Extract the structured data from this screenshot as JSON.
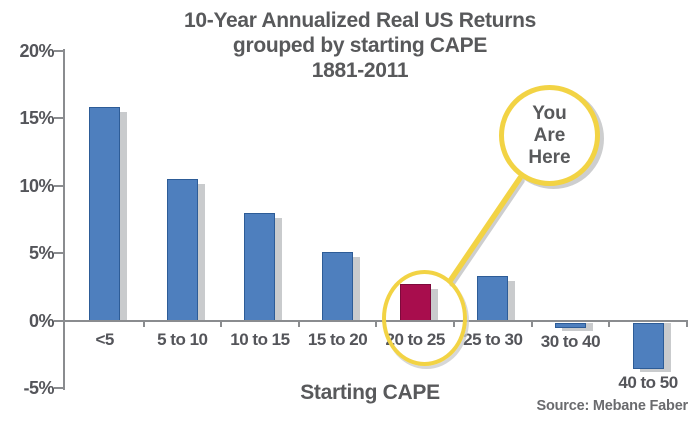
{
  "title": {
    "lines": [
      "10-Year Annualized Real US Returns",
      "grouped by starting CAPE",
      "1881-2011"
    ]
  },
  "chart_data": {
    "type": "bar",
    "categories": [
      "<5",
      "5 to 10",
      "10 to 15",
      "15 to 20",
      "20 to 25",
      "25 to 30",
      "30 to 40",
      "40 to 50"
    ],
    "values": [
      15.8,
      10.5,
      8.0,
      5.1,
      2.7,
      3.3,
      -0.3,
      -3.4
    ],
    "highlight_index": 4,
    "title": "10-Year Annualized Real US Returns grouped by starting CAPE 1881-2011",
    "xlabel": "Starting CAPE",
    "ylabel": "",
    "ylim": [
      -5,
      20
    ],
    "y_ticks": [
      20,
      15,
      10,
      5,
      0,
      -5
    ],
    "y_tick_labels": [
      "20%",
      "15%",
      "10%",
      "5%",
      "0%",
      "-5%"
    ],
    "grid": false,
    "legend": false,
    "bar_color": "#4E7FBE",
    "bar_border_color": "#2D5C97",
    "highlight_color": "#A80D4D",
    "highlight_border_color": "#7E0A3C",
    "shadow_color": "#C9CBCD"
  },
  "annotation": {
    "lines": [
      "You",
      "Are",
      "Here"
    ],
    "circle_color": "#F2D344"
  },
  "source": "Source: Mebane Faber"
}
